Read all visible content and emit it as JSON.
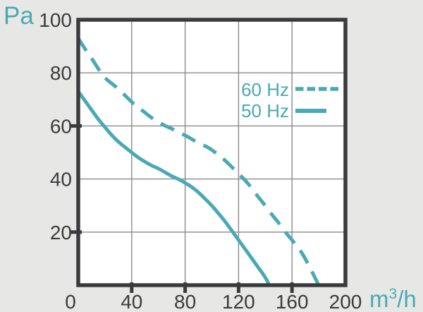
{
  "labels": {
    "y_unit": "Pa",
    "x_unit_base": "m",
    "x_unit_exp": "3",
    "x_unit_rest": "/h"
  },
  "colors": {
    "background": "#e7e8e6",
    "plot_background": "#ffffff",
    "grid": "#8a8a8a",
    "axis": "#3b3b3d",
    "tick_label": "#3b3b3d",
    "accent": "#4aa9b4"
  },
  "chart_data": {
    "type": "line",
    "title": "",
    "xlabel": "m³/h",
    "ylabel": "Pa",
    "xlim": [
      0,
      200
    ],
    "ylim": [
      0,
      100
    ],
    "x_ticks": [
      0,
      40,
      80,
      120,
      160,
      200
    ],
    "y_ticks": [
      20,
      40,
      60,
      80,
      100
    ],
    "gridline_x": [
      40,
      80,
      120,
      160
    ],
    "gridline_y": [
      20,
      40,
      60,
      80
    ],
    "axis_tick_marks_x": [
      40,
      80,
      120,
      160
    ],
    "axis_tick_marks_y": [
      20,
      60
    ],
    "grid": true,
    "legend_position": "upper-right-inside",
    "series": [
      {
        "name": "60 Hz",
        "line_style": "dashed",
        "color": "#4aa9b4",
        "points": [
          [
            0,
            93
          ],
          [
            5,
            89
          ],
          [
            10,
            85.5
          ],
          [
            15,
            81.5
          ],
          [
            20,
            78
          ],
          [
            25,
            76
          ],
          [
            30,
            74
          ],
          [
            35,
            71.5
          ],
          [
            40,
            69
          ],
          [
            45,
            67
          ],
          [
            50,
            65
          ],
          [
            55,
            63
          ],
          [
            60,
            61.5
          ],
          [
            65,
            60
          ],
          [
            70,
            59
          ],
          [
            75,
            57.5
          ],
          [
            80,
            56.5
          ],
          [
            85,
            55
          ],
          [
            90,
            53.5
          ],
          [
            95,
            52.5
          ],
          [
            100,
            51
          ],
          [
            105,
            49
          ],
          [
            110,
            47
          ],
          [
            115,
            44.5
          ],
          [
            120,
            42
          ],
          [
            125,
            39.5
          ],
          [
            130,
            36.5
          ],
          [
            135,
            33
          ],
          [
            140,
            30
          ],
          [
            145,
            26.5
          ],
          [
            150,
            23.5
          ],
          [
            155,
            20
          ],
          [
            160,
            17
          ],
          [
            165,
            14
          ],
          [
            170,
            10
          ],
          [
            175,
            5
          ],
          [
            180,
            0
          ]
        ]
      },
      {
        "name": "50 Hz",
        "line_style": "solid",
        "color": "#4aa9b4",
        "points": [
          [
            0,
            73
          ],
          [
            5,
            69.5
          ],
          [
            10,
            66
          ],
          [
            15,
            62.5
          ],
          [
            20,
            59.5
          ],
          [
            25,
            56.5
          ],
          [
            30,
            54
          ],
          [
            35,
            52
          ],
          [
            40,
            50
          ],
          [
            45,
            48
          ],
          [
            50,
            46.5
          ],
          [
            55,
            45
          ],
          [
            60,
            44
          ],
          [
            65,
            42.5
          ],
          [
            70,
            41
          ],
          [
            75,
            40
          ],
          [
            80,
            38.5
          ],
          [
            85,
            37
          ],
          [
            90,
            35
          ],
          [
            95,
            32.5
          ],
          [
            100,
            30
          ],
          [
            105,
            27
          ],
          [
            110,
            24
          ],
          [
            115,
            20.5
          ],
          [
            120,
            17
          ],
          [
            125,
            13.5
          ],
          [
            130,
            10
          ],
          [
            135,
            6.5
          ],
          [
            140,
            3
          ],
          [
            143,
            0
          ]
        ]
      }
    ]
  }
}
